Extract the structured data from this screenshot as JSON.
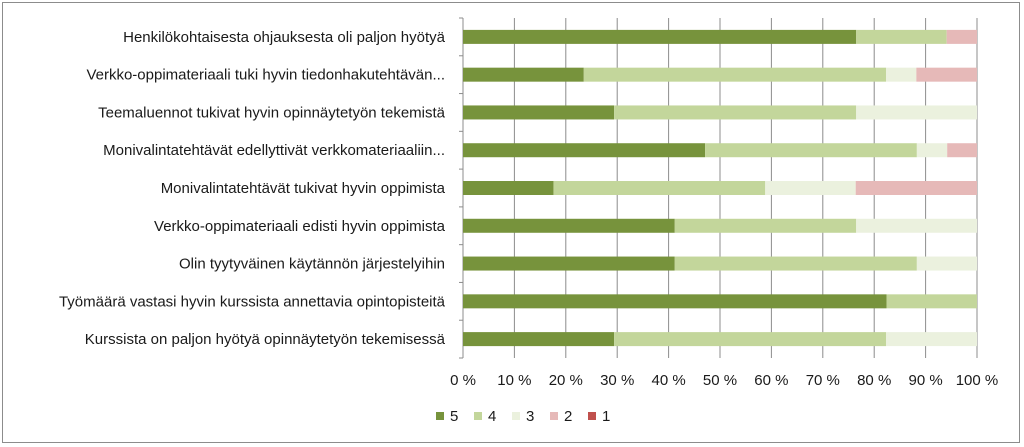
{
  "chart_data": {
    "type": "bar",
    "orientation": "horizontal",
    "stacked": "percent",
    "title": "",
    "xlabel": "",
    "ylabel": "",
    "xlim": [
      0,
      100
    ],
    "x_ticks": [
      "0 %",
      "10 %",
      "20 %",
      "30 %",
      "40 %",
      "50 %",
      "60 %",
      "70 %",
      "80 %",
      "90 %",
      "100 %"
    ],
    "grid": "vertical",
    "legend_position": "bottom",
    "categories": [
      "Henkilökohtaisesta ohjauksesta oli paljon hyötyä",
      "Verkko-oppimateriaali tuki hyvin tiedonhakutehtävän...",
      "Teemaluennot tukivat hyvin opinnäytetyön tekemistä",
      "Monivalintatehtävät edellyttivät verkkomateriaaliin...",
      "Monivalintatehtävät tukivat hyvin oppimista",
      "Verkko-oppimateriaali edisti hyvin oppimista",
      "Olin tyytyväinen käytännön järjestelyihin",
      "Työmäärä vastasi hyvin kurssista annettavia opintopisteitä",
      "Kurssista on paljon hyötyä opinnäytetyön tekemisessä"
    ],
    "series": [
      {
        "name": "5",
        "color": "#77933c",
        "values": [
          76.5,
          23.5,
          29.4,
          47.1,
          17.6,
          41.2,
          41.2,
          82.4,
          29.4
        ]
      },
      {
        "name": "4",
        "color": "#c3d69b",
        "values": [
          17.6,
          58.8,
          47.1,
          41.2,
          41.2,
          35.3,
          47.1,
          17.6,
          52.9
        ]
      },
      {
        "name": "3",
        "color": "#ebf1de",
        "values": [
          0,
          5.9,
          23.5,
          5.9,
          17.6,
          23.5,
          11.7,
          0,
          17.7
        ]
      },
      {
        "name": "2",
        "color": "#e6b9b8",
        "values": [
          5.9,
          11.8,
          0,
          5.8,
          23.6,
          0,
          0,
          0,
          0
        ]
      },
      {
        "name": "1",
        "color": "#c0504d",
        "values": [
          0,
          0,
          0,
          0,
          0,
          0,
          0,
          0,
          0
        ]
      }
    ]
  }
}
